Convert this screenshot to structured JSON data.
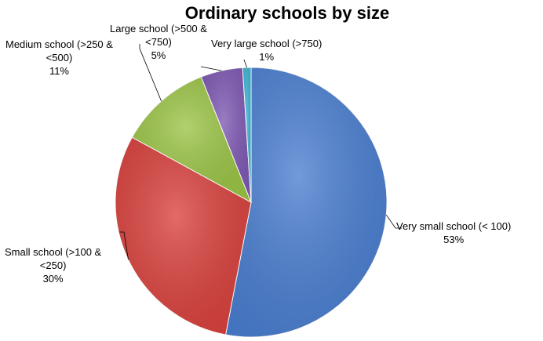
{
  "chart_data": {
    "type": "pie",
    "title": "Ordinary schools by size",
    "slices": [
      {
        "label": "Very small school (< 100)",
        "value": 53,
        "display": "53%",
        "color": "#4a7ed0"
      },
      {
        "label": "Small school (>100 & <250)",
        "value": 30,
        "display": "30%",
        "color": "#d9413d"
      },
      {
        "label": "Medium school (>250 & <500)",
        "value": 11,
        "display": "11%",
        "color": "#9bc446"
      },
      {
        "label": "Large school (>500 & <750)",
        "value": 5,
        "display": "5%",
        "color": "#7e58b3"
      },
      {
        "label": "Very large school (>750)",
        "value": 1,
        "display": "1%",
        "color": "#3bb3d4"
      }
    ]
  },
  "labels": [
    {
      "lines": [
        "Very small school (< 100)",
        "53%"
      ]
    },
    {
      "lines": [
        "Small school (>100 &",
        "<250)",
        "30%"
      ]
    },
    {
      "lines": [
        "Medium school (>250 &",
        "<500)",
        "11%"
      ]
    },
    {
      "lines": [
        "Large school (>500 &",
        "<750)",
        "5%"
      ]
    },
    {
      "lines": [
        "Very large school (>750)",
        "1%"
      ]
    }
  ]
}
